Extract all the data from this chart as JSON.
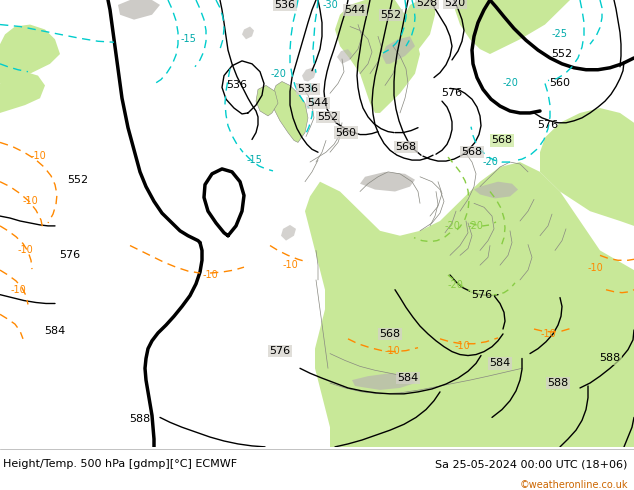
{
  "title_left": "Height/Temp. 500 hPa [gdmp][°C] ECMWF",
  "title_right": "Sa 25-05-2024 00:00 UTC (18+06)",
  "credit": "©weatheronline.co.uk",
  "bg_color": "#ffffff",
  "figure_width": 6.34,
  "figure_height": 4.9,
  "dpi": 100,
  "footer_color": "#000000",
  "credit_color": "#cc6600",
  "land_light_green": "#c8e8a0",
  "land_gray": "#c0bdb8",
  "ocean_gray": "#d8d5d0",
  "sea_light": "#e8e5e0"
}
